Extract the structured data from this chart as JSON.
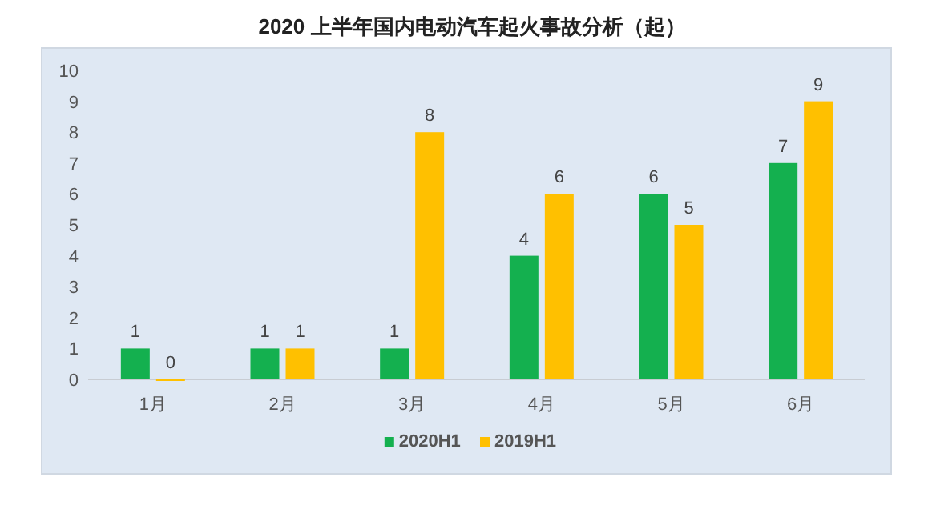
{
  "chart_data": {
    "type": "bar",
    "title": "2020 上半年国内电动汽车起火事故分析（起）",
    "categories": [
      "1月",
      "2月",
      "3月",
      "4月",
      "5月",
      "6月"
    ],
    "series": [
      {
        "name": "2020H1",
        "color": "#14b04f",
        "values": [
          1,
          1,
          1,
          4,
          6,
          7
        ]
      },
      {
        "name": "2019H1",
        "color": "#ffc000",
        "values": [
          0,
          1,
          8,
          6,
          5,
          9
        ]
      }
    ],
    "ylim": [
      0,
      10
    ],
    "yticks": [
      0,
      1,
      2,
      3,
      4,
      5,
      6,
      7,
      8,
      9,
      10
    ],
    "data_labels": true,
    "legend": "bottom"
  }
}
